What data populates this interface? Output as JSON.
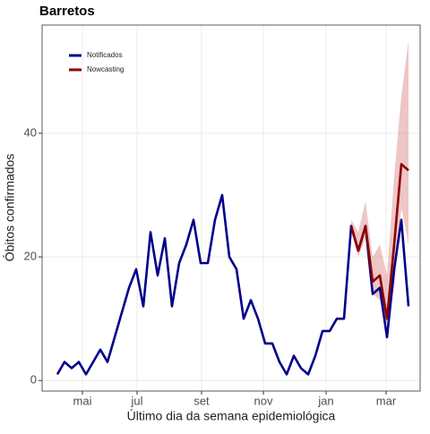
{
  "chart_data": {
    "type": "line",
    "title": "Barretos",
    "xlabel": "Último dia da semana epidemiológica",
    "ylabel": "Óbitos confirmados",
    "x": [
      0,
      1,
      2,
      3,
      4,
      5,
      6,
      7,
      8,
      9,
      10,
      11,
      12,
      13,
      14,
      15,
      16,
      17,
      18,
      19,
      20,
      21,
      22,
      23,
      24,
      25,
      26,
      27,
      28,
      29,
      30,
      31,
      32,
      33,
      34,
      35,
      36,
      37,
      38,
      39,
      40,
      41,
      42,
      43,
      44,
      45,
      46,
      47,
      48,
      49
    ],
    "series": [
      {
        "name": "Notificados",
        "color": "#00008b",
        "values": [
          1,
          3,
          2,
          3,
          1,
          3,
          5,
          3,
          7,
          11,
          15,
          18,
          12,
          24,
          17,
          23,
          12,
          19,
          22,
          26,
          19,
          19,
          26,
          30,
          20,
          18,
          10,
          13,
          10,
          6,
          6,
          3,
          1,
          4,
          2,
          1,
          4,
          8,
          8,
          10,
          10,
          25,
          21,
          25,
          14,
          15,
          7,
          18,
          26,
          12
        ]
      },
      {
        "name": "Nowcasting",
        "color": "#8b0000",
        "values": [
          null,
          null,
          null,
          null,
          null,
          null,
          null,
          null,
          null,
          null,
          null,
          null,
          null,
          null,
          null,
          null,
          null,
          null,
          null,
          null,
          null,
          null,
          null,
          null,
          null,
          null,
          null,
          null,
          null,
          null,
          null,
          null,
          null,
          null,
          null,
          null,
          null,
          null,
          null,
          null,
          null,
          25,
          21,
          25,
          16,
          17,
          10,
          22,
          35,
          34
        ]
      }
    ],
    "band": {
      "color": "#cd5c5c",
      "x": [
        41,
        42,
        43,
        44,
        45,
        46,
        47,
        48,
        49
      ],
      "lower": [
        24,
        20,
        23,
        14,
        13,
        9,
        15,
        28,
        22
      ],
      "upper": [
        26,
        24,
        29,
        20,
        22,
        17,
        33,
        46,
        55
      ]
    },
    "xlim": [
      -2.125,
      50.625
    ],
    "xticks": [
      {
        "value": 3.5,
        "label": "mai"
      },
      {
        "value": 11.125,
        "label": "jul"
      },
      {
        "value": 20.125,
        "label": "set"
      },
      {
        "value": 28.75,
        "label": "nov"
      },
      {
        "value": 37.5,
        "label": "jan"
      },
      {
        "value": 45.875,
        "label": "mar"
      }
    ],
    "ylim": [
      -1.7,
      57.5
    ],
    "yticks": [
      0,
      20,
      40
    ],
    "grid": true,
    "legend": "top-left"
  }
}
